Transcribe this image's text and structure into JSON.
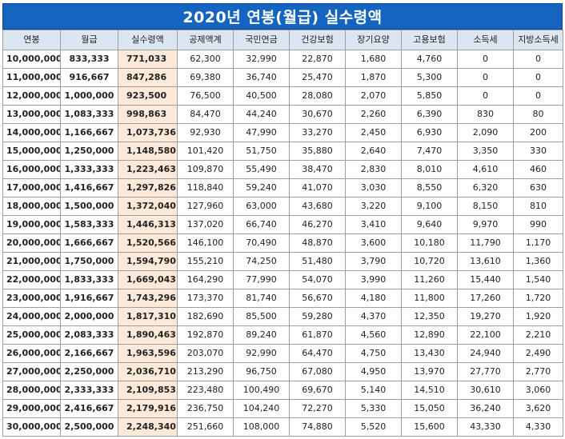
{
  "title": "2020년 연봉(월급) 실수령액",
  "headers": [
    "연봉",
    "월급",
    "실수령액",
    "공제액계",
    "국민연금",
    "건강보험",
    "장기요양",
    "고용보험",
    "소득세",
    "지방소득세"
  ],
  "rows": [
    [
      "10,000,000",
      "833,333",
      "771,033",
      "62,300",
      "32,990",
      "22,870",
      "1,680",
      "4,760",
      "0",
      "0"
    ],
    [
      "11,000,000",
      "916,667",
      "847,286",
      "69,380",
      "36,740",
      "25,470",
      "1,870",
      "5,300",
      "0",
      "0"
    ],
    [
      "12,000,000",
      "1,000,000",
      "923,500",
      "76,500",
      "40,500",
      "28,080",
      "2,070",
      "5,850",
      "0",
      "0"
    ],
    [
      "13,000,000",
      "1,083,333",
      "998,863",
      "84,470",
      "44,240",
      "30,670",
      "2,260",
      "6,390",
      "830",
      "80"
    ],
    [
      "14,000,000",
      "1,166,667",
      "1,073,736",
      "92,930",
      "47,990",
      "33,270",
      "2,450",
      "6,930",
      "2,090",
      "200"
    ],
    [
      "15,000,000",
      "1,250,000",
      "1,148,580",
      "101,420",
      "51,750",
      "35,880",
      "2,640",
      "7,470",
      "3,350",
      "330"
    ],
    [
      "16,000,000",
      "1,333,333",
      "1,223,463",
      "109,870",
      "55,490",
      "38,470",
      "2,830",
      "8,010",
      "4,610",
      "460"
    ],
    [
      "17,000,000",
      "1,416,667",
      "1,297,826",
      "118,840",
      "59,240",
      "41,070",
      "3,030",
      "8,550",
      "6,320",
      "630"
    ],
    [
      "18,000,000",
      "1,500,000",
      "1,372,040",
      "127,960",
      "63,000",
      "43,680",
      "3,220",
      "9,100",
      "8,150",
      "810"
    ],
    [
      "19,000,000",
      "1,583,333",
      "1,446,313",
      "137,020",
      "66,740",
      "46,270",
      "3,410",
      "9,640",
      "9,970",
      "990"
    ],
    [
      "20,000,000",
      "1,666,667",
      "1,520,566",
      "146,100",
      "70,490",
      "48,870",
      "3,600",
      "10,180",
      "11,790",
      "1,170"
    ],
    [
      "21,000,000",
      "1,750,000",
      "1,594,790",
      "155,210",
      "74,250",
      "51,480",
      "3,790",
      "10,720",
      "13,610",
      "1,360"
    ],
    [
      "22,000,000",
      "1,833,333",
      "1,669,043",
      "164,290",
      "77,990",
      "54,070",
      "3,990",
      "11,260",
      "15,440",
      "1,540"
    ],
    [
      "23,000,000",
      "1,916,667",
      "1,743,296",
      "173,370",
      "81,740",
      "56,670",
      "4,180",
      "11,800",
      "17,260",
      "1,720"
    ],
    [
      "24,000,000",
      "2,000,000",
      "1,817,310",
      "182,690",
      "85,500",
      "59,280",
      "4,370",
      "12,350",
      "19,270",
      "1,920"
    ],
    [
      "25,000,000",
      "2,083,333",
      "1,890,463",
      "192,870",
      "89,240",
      "61,870",
      "4,560",
      "12,890",
      "22,100",
      "2,210"
    ],
    [
      "26,000,000",
      "2,166,667",
      "1,963,596",
      "203,070",
      "92,990",
      "64,470",
      "4,750",
      "13,430",
      "24,940",
      "2,490"
    ],
    [
      "27,000,000",
      "2,250,000",
      "2,036,710",
      "213,290",
      "96,750",
      "67,080",
      "4,950",
      "13,970",
      "27,770",
      "2,770"
    ],
    [
      "28,000,000",
      "2,333,333",
      "2,109,853",
      "223,480",
      "100,490",
      "69,670",
      "5,140",
      "14,510",
      "30,610",
      "3,060"
    ],
    [
      "29,000,000",
      "2,416,667",
      "2,179,916",
      "236,750",
      "104,240",
      "72,270",
      "5,330",
      "15,050",
      "36,240",
      "3,620"
    ],
    [
      "30,000,000",
      "2,500,000",
      "2,248,340",
      "251,660",
      "108,000",
      "74,880",
      "5,520",
      "15,600",
      "43,330",
      "4,330"
    ]
  ],
  "colors": {
    "title_bg": "#1565c0",
    "header_bg": "#dce6f2",
    "net_pay_bg": "#fde9d9"
  }
}
